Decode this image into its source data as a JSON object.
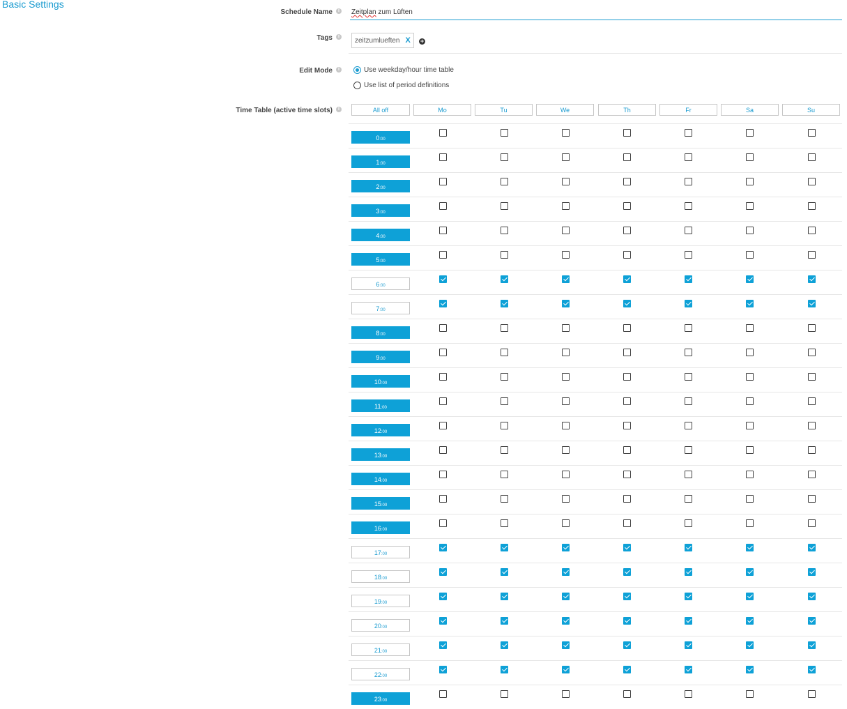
{
  "section_title": "Basic Settings",
  "form": {
    "schedule_name_label": "Schedule Name",
    "schedule_name_value": "Zeitplan zum Lüften",
    "schedule_name_spellcheck_word": "Zeitplan",
    "tags_label": "Tags",
    "tags": [
      "zeitzumlueften"
    ],
    "tag_remove_glyph": "X",
    "tag_add_glyph": "+",
    "edit_mode_label": "Edit Mode",
    "edit_mode_options": [
      {
        "label": "Use weekday/hour time table",
        "selected": true
      },
      {
        "label": "Use list of period definitions",
        "selected": false
      }
    ],
    "time_table_label": "Time Table (active time slots)",
    "info_glyph": "i"
  },
  "time_table": {
    "all_off_label": "All off",
    "days": [
      "Mo",
      "Tu",
      "We",
      "Th",
      "Fr",
      "Sa",
      "Su"
    ],
    "minutes_suffix": ":00",
    "hours": [
      {
        "hour": "0",
        "active": [
          false,
          false,
          false,
          false,
          false,
          false,
          false
        ]
      },
      {
        "hour": "1",
        "active": [
          false,
          false,
          false,
          false,
          false,
          false,
          false
        ]
      },
      {
        "hour": "2",
        "active": [
          false,
          false,
          false,
          false,
          false,
          false,
          false
        ]
      },
      {
        "hour": "3",
        "active": [
          false,
          false,
          false,
          false,
          false,
          false,
          false
        ]
      },
      {
        "hour": "4",
        "active": [
          false,
          false,
          false,
          false,
          false,
          false,
          false
        ]
      },
      {
        "hour": "5",
        "active": [
          false,
          false,
          false,
          false,
          false,
          false,
          false
        ]
      },
      {
        "hour": "6",
        "active": [
          true,
          true,
          true,
          true,
          true,
          true,
          true
        ]
      },
      {
        "hour": "7",
        "active": [
          true,
          true,
          true,
          true,
          true,
          true,
          true
        ]
      },
      {
        "hour": "8",
        "active": [
          false,
          false,
          false,
          false,
          false,
          false,
          false
        ]
      },
      {
        "hour": "9",
        "active": [
          false,
          false,
          false,
          false,
          false,
          false,
          false
        ]
      },
      {
        "hour": "10",
        "active": [
          false,
          false,
          false,
          false,
          false,
          false,
          false
        ]
      },
      {
        "hour": "11",
        "active": [
          false,
          false,
          false,
          false,
          false,
          false,
          false
        ]
      },
      {
        "hour": "12",
        "active": [
          false,
          false,
          false,
          false,
          false,
          false,
          false
        ]
      },
      {
        "hour": "13",
        "active": [
          false,
          false,
          false,
          false,
          false,
          false,
          false
        ]
      },
      {
        "hour": "14",
        "active": [
          false,
          false,
          false,
          false,
          false,
          false,
          false
        ]
      },
      {
        "hour": "15",
        "active": [
          false,
          false,
          false,
          false,
          false,
          false,
          false
        ]
      },
      {
        "hour": "16",
        "active": [
          false,
          false,
          false,
          false,
          false,
          false,
          false
        ]
      },
      {
        "hour": "17",
        "active": [
          true,
          true,
          true,
          true,
          true,
          true,
          true
        ]
      },
      {
        "hour": "18",
        "active": [
          true,
          true,
          true,
          true,
          true,
          true,
          true
        ]
      },
      {
        "hour": "19",
        "active": [
          true,
          true,
          true,
          true,
          true,
          true,
          true
        ]
      },
      {
        "hour": "20",
        "active": [
          true,
          true,
          true,
          true,
          true,
          true,
          true
        ]
      },
      {
        "hour": "21",
        "active": [
          true,
          true,
          true,
          true,
          true,
          true,
          true
        ]
      },
      {
        "hour": "22",
        "active": [
          true,
          true,
          true,
          true,
          true,
          true,
          true
        ]
      },
      {
        "hour": "23",
        "active": [
          false,
          false,
          false,
          false,
          false,
          false,
          false
        ]
      }
    ]
  },
  "colors": {
    "accent": "#0ea1d7",
    "title": "#1a9bd0",
    "border": "#c6c6c6",
    "divider": "#e6e6e6"
  }
}
